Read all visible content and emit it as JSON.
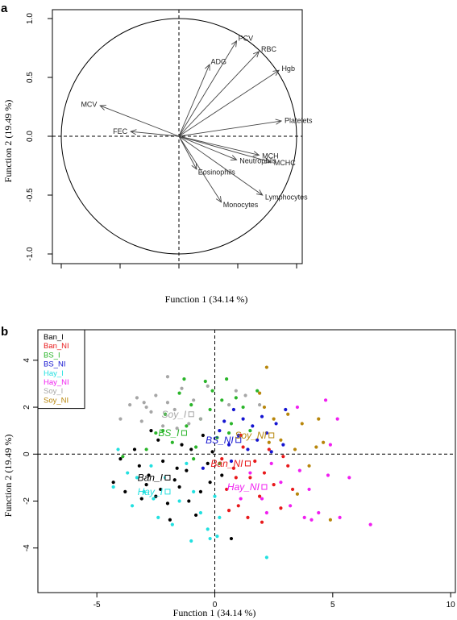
{
  "chart_data": [
    {
      "panel": "a",
      "type": "scatter",
      "subtype": "biplot-loadings",
      "xlabel": "Function 1 (34.14 %)",
      "ylabel": "Function 2 (19.49 %)",
      "xlim": [
        -1.0,
        1.0
      ],
      "ylim": [
        -1.0,
        1.0
      ],
      "y_ticks": [
        "1.0",
        "0.5",
        "0.0",
        "-0.5",
        "-1.0"
      ],
      "grid": false,
      "unit_circle": true,
      "variables": [
        {
          "name": "ADG",
          "x": 0.26,
          "y": 0.61
        },
        {
          "name": "PCV",
          "x": 0.49,
          "y": 0.81
        },
        {
          "name": "RBC",
          "x": 0.68,
          "y": 0.72
        },
        {
          "name": "Hgb",
          "x": 0.85,
          "y": 0.56
        },
        {
          "name": "Platelets",
          "x": 0.87,
          "y": 0.13
        },
        {
          "name": "MCV",
          "x": -0.67,
          "y": 0.26
        },
        {
          "name": "FEC",
          "x": -0.41,
          "y": 0.04
        },
        {
          "name": "MCH",
          "x": 0.68,
          "y": -0.16
        },
        {
          "name": "MCHC",
          "x": 0.78,
          "y": -0.22
        },
        {
          "name": "Neutrophils",
          "x": 0.49,
          "y": -0.2
        },
        {
          "name": "Eosinophils",
          "x": 0.15,
          "y": -0.28
        },
        {
          "name": "Monocytes",
          "x": 0.36,
          "y": -0.56
        },
        {
          "name": "Lymphocytes",
          "x": 0.71,
          "y": -0.5
        }
      ]
    },
    {
      "panel": "b",
      "type": "scatter",
      "xlabel": "Function 1 (34.14 %)",
      "ylabel": "Function 2 (19.49 %)",
      "xlim": [
        -7.5,
        10.2
      ],
      "ylim": [
        -5.9,
        5.3
      ],
      "x_ticks": [
        -5,
        0,
        5,
        10
      ],
      "y_ticks": [
        4,
        2,
        0,
        -2,
        -4
      ],
      "grid": false,
      "legend": "top-left",
      "groups": [
        {
          "name": "Ban_I",
          "color": "#000000",
          "centroid": [
            -2.0,
            -1.0
          ],
          "points": [
            [
              -4.3,
              -1.2
            ],
            [
              -3.8,
              -1.6
            ],
            [
              -3.2,
              -0.5
            ],
            [
              -2.8,
              -0.9
            ],
            [
              -2.5,
              -1.8
            ],
            [
              -2.4,
              0.6
            ],
            [
              -2.2,
              -0.3
            ],
            [
              -2.0,
              -2.1
            ],
            [
              -1.7,
              -1.1
            ],
            [
              -1.5,
              -1.4
            ],
            [
              -1.2,
              -0.7
            ],
            [
              -1.0,
              0.2
            ],
            [
              -0.8,
              -2.6
            ],
            [
              -0.6,
              -1.6
            ],
            [
              -0.5,
              0.8
            ],
            [
              -0.3,
              -0.4
            ],
            [
              -0.2,
              -1.2
            ],
            [
              -1.9,
              -2.8
            ],
            [
              -2.7,
              1.0
            ],
            [
              -3.1,
              -1.9
            ],
            [
              -4.0,
              -0.2
            ],
            [
              -2.9,
              -1.3
            ],
            [
              -1.4,
              0.4
            ],
            [
              0.3,
              -0.9
            ],
            [
              0.7,
              -3.6
            ],
            [
              -3.4,
              0.2
            ],
            [
              -1.1,
              -2.0
            ],
            [
              -0.1,
              0.1
            ],
            [
              -2.3,
              -1.5
            ],
            [
              -1.6,
              -0.6
            ]
          ]
        },
        {
          "name": "Ban_NI",
          "color": "#e8191b",
          "centroid": [
            1.4,
            -0.4
          ],
          "points": [
            [
              0.3,
              -0.2
            ],
            [
              0.5,
              -1.5
            ],
            [
              0.8,
              -0.6
            ],
            [
              1.0,
              -2.2
            ],
            [
              1.2,
              0.3
            ],
            [
              1.5,
              -1.0
            ],
            [
              1.7,
              -0.3
            ],
            [
              1.9,
              -1.8
            ],
            [
              2.1,
              -0.8
            ],
            [
              2.3,
              0.2
            ],
            [
              2.5,
              -1.3
            ],
            [
              2.8,
              -2.3
            ],
            [
              3.1,
              -0.5
            ],
            [
              3.3,
              -1.5
            ],
            [
              1.4,
              -2.7
            ],
            [
              0.9,
              -1.0
            ],
            [
              2.0,
              -2.9
            ],
            [
              1.1,
              0.8
            ],
            [
              2.9,
              -0.1
            ],
            [
              0.6,
              -2.4
            ]
          ]
        },
        {
          "name": "BS_I",
          "color": "#2ab52a",
          "centroid": [
            -1.3,
            0.9
          ],
          "points": [
            [
              -2.9,
              0.2
            ],
            [
              -2.5,
              0.9
            ],
            [
              -2.1,
              1.7
            ],
            [
              -1.8,
              0.5
            ],
            [
              -1.5,
              2.6
            ],
            [
              -1.2,
              1.2
            ],
            [
              -1.0,
              2.1
            ],
            [
              -0.8,
              0.3
            ],
            [
              -0.6,
              1.5
            ],
            [
              -0.4,
              3.1
            ],
            [
              -0.2,
              1.9
            ],
            [
              0.1,
              0.7
            ],
            [
              0.3,
              2.3
            ],
            [
              0.5,
              3.2
            ],
            [
              0.7,
              1.3
            ],
            [
              0.9,
              2.4
            ],
            [
              1.2,
              2.0
            ],
            [
              1.5,
              1.0
            ],
            [
              -1.3,
              3.2
            ],
            [
              0.2,
              -0.4
            ],
            [
              -0.1,
              2.7
            ],
            [
              0.6,
              0.9
            ],
            [
              -2.2,
              1.0
            ],
            [
              -0.9,
              -0.2
            ],
            [
              1.8,
              2.7
            ],
            [
              -3.9,
              -0.1
            ]
          ]
        },
        {
          "name": "BS_NI",
          "color": "#1515d1",
          "centroid": [
            1.0,
            0.6
          ],
          "points": [
            [
              0.2,
              1.0
            ],
            [
              0.4,
              1.4
            ],
            [
              0.6,
              0.4
            ],
            [
              0.8,
              1.9
            ],
            [
              1.0,
              0.8
            ],
            [
              1.2,
              1.5
            ],
            [
              1.4,
              0.2
            ],
            [
              1.6,
              1.2
            ],
            [
              1.8,
              0.6
            ],
            [
              2.0,
              1.6
            ],
            [
              2.2,
              0.9
            ],
            [
              2.4,
              0.1
            ],
            [
              2.6,
              1.3
            ],
            [
              2.9,
              0.4
            ],
            [
              0.7,
              -0.3
            ],
            [
              3.0,
              1.9
            ],
            [
              -0.5,
              -0.6
            ]
          ]
        },
        {
          "name": "Hay_I",
          "color": "#22e0e0",
          "centroid": [
            -2.0,
            -1.6
          ],
          "points": [
            [
              -4.3,
              -1.4
            ],
            [
              -4.1,
              0.2
            ],
            [
              -3.7,
              -0.8
            ],
            [
              -3.5,
              -2.2
            ],
            [
              -3.0,
              -1.6
            ],
            [
              -2.7,
              -0.5
            ],
            [
              -2.4,
              -2.7
            ],
            [
              -2.1,
              -1.0
            ],
            [
              -1.8,
              -3.0
            ],
            [
              -1.5,
              -2.0
            ],
            [
              -1.2,
              -0.4
            ],
            [
              -0.9,
              -1.6
            ],
            [
              -0.6,
              -2.5
            ],
            [
              -0.3,
              -3.2
            ],
            [
              0.0,
              -1.8
            ],
            [
              0.2,
              -2.7
            ],
            [
              -1.0,
              -3.7
            ],
            [
              0.1,
              -3.5
            ],
            [
              2.2,
              -4.4
            ],
            [
              -3.3,
              -1.0
            ],
            [
              -0.2,
              -3.6
            ],
            [
              -2.6,
              -1.9
            ]
          ]
        },
        {
          "name": "Hay_NI",
          "color": "#f01ff0",
          "centroid": [
            2.1,
            -1.4
          ],
          "points": [
            [
              1.5,
              -0.8
            ],
            [
              2.0,
              -1.9
            ],
            [
              2.4,
              -0.4
            ],
            [
              2.8,
              -1.2
            ],
            [
              3.2,
              -2.2
            ],
            [
              3.6,
              -0.7
            ],
            [
              4.0,
              -1.5
            ],
            [
              4.4,
              -2.5
            ],
            [
              4.8,
              -0.9
            ],
            [
              5.3,
              -2.7
            ],
            [
              5.7,
              -1.0
            ],
            [
              6.6,
              -3.0
            ],
            [
              4.9,
              0.4
            ],
            [
              5.2,
              1.5
            ],
            [
              4.7,
              2.3
            ],
            [
              3.5,
              2.0
            ],
            [
              3.8,
              -2.7
            ],
            [
              2.2,
              -2.5
            ],
            [
              1.1,
              -1.9
            ],
            [
              4.1,
              -2.8
            ]
          ]
        },
        {
          "name": "Soy_I",
          "color": "#a6a6a6",
          "centroid": [
            -1.0,
            1.7
          ],
          "points": [
            [
              -4.0,
              1.5
            ],
            [
              -3.6,
              2.1
            ],
            [
              -3.3,
              2.4
            ],
            [
              -3.1,
              1.4
            ],
            [
              -2.9,
              2.0
            ],
            [
              -2.7,
              1.8
            ],
            [
              -2.5,
              2.5
            ],
            [
              -2.2,
              1.2
            ],
            [
              -2.0,
              2.2
            ],
            [
              -1.7,
              1.9
            ],
            [
              -1.4,
              2.8
            ],
            [
              -1.1,
              1.3
            ],
            [
              -0.9,
              2.3
            ],
            [
              -0.6,
              1.5
            ],
            [
              -0.3,
              2.9
            ],
            [
              0.6,
              2.1
            ],
            [
              0.9,
              2.7
            ],
            [
              1.3,
              2.5
            ],
            [
              1.9,
              2.1
            ],
            [
              -2.0,
              3.3
            ],
            [
              -3.0,
              2.2
            ],
            [
              -1.6,
              1.1
            ]
          ]
        },
        {
          "name": "Soy_NI",
          "color": "#b8860b",
          "centroid": [
            2.4,
            0.8
          ],
          "points": [
            [
              1.9,
              2.6
            ],
            [
              2.2,
              3.7
            ],
            [
              2.5,
              1.5
            ],
            [
              2.8,
              0.6
            ],
            [
              3.1,
              1.7
            ],
            [
              3.4,
              0.2
            ],
            [
              3.7,
              1.3
            ],
            [
              4.0,
              -0.5
            ],
            [
              4.3,
              0.3
            ],
            [
              4.6,
              0.5
            ],
            [
              4.4,
              1.5
            ],
            [
              4.9,
              -2.8
            ],
            [
              3.5,
              -1.7
            ],
            [
              2.3,
              0.5
            ],
            [
              2.1,
              2.0
            ]
          ]
        }
      ]
    }
  ]
}
